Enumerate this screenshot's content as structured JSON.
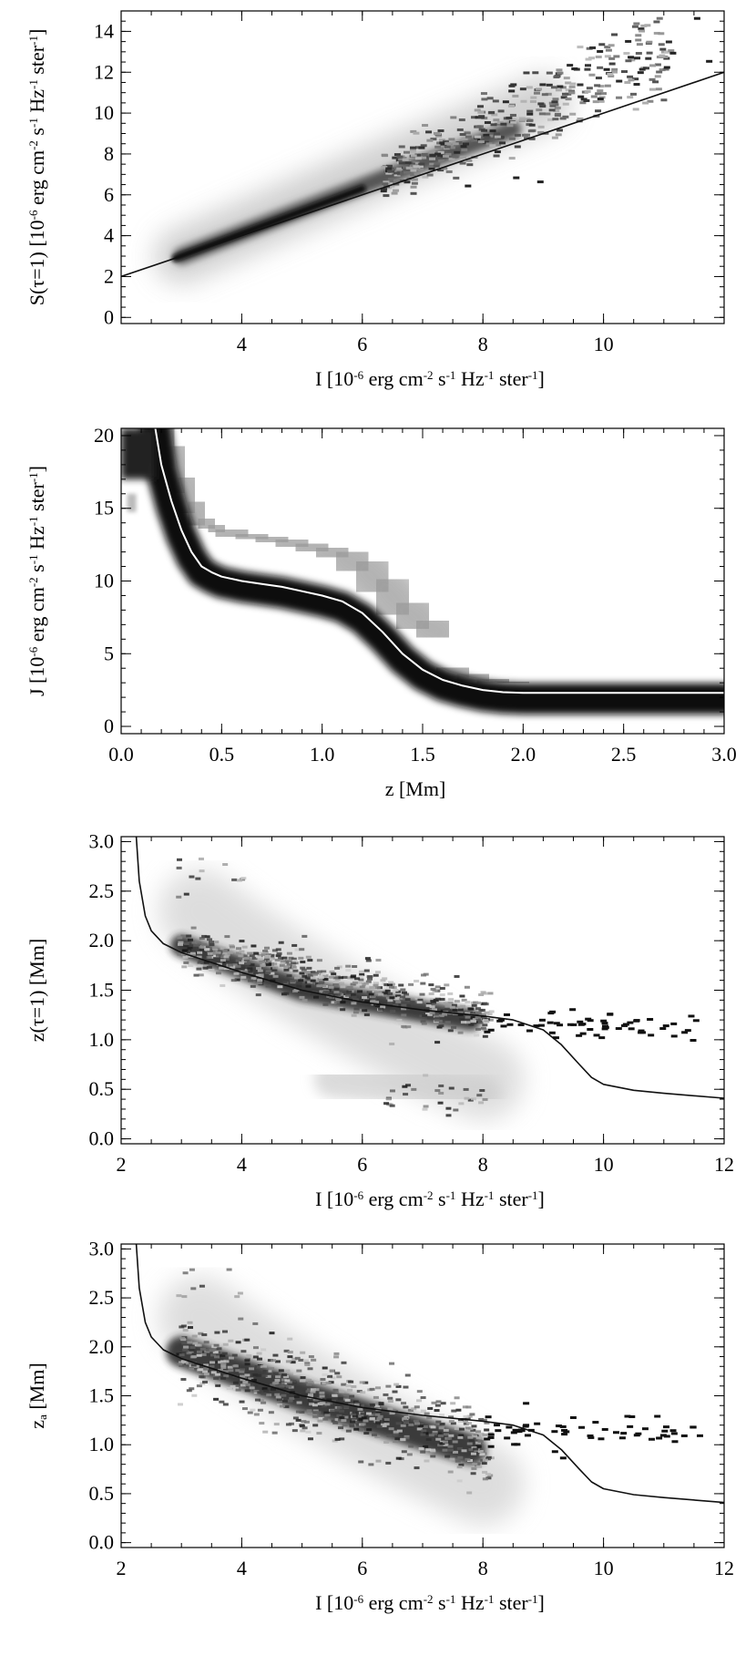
{
  "chart_data": [
    {
      "type": "heatmap",
      "xlabel": "I [10⁻⁶ erg cm⁻² s⁻¹ Hz⁻¹ ster⁻¹]",
      "xlabel_parts": {
        "pre": "I [10",
        "sup1": "-6",
        "mid1": " erg cm",
        "sup2": "-2",
        "mid2": " s",
        "sup3": "-1",
        "mid3": " Hz",
        "sup4": "-1",
        "mid4": " ster",
        "sup5": "-1",
        "post": "]"
      },
      "ylabel": "S(τ=1) [10⁻⁶ erg cm⁻² s⁻¹ Hz⁻¹ ster⁻¹]",
      "ylabel_parts": {
        "pre": "S(τ=1) [10",
        "sup1": "-6",
        "mid1": " erg cm",
        "sup2": "-2",
        "mid2": " s",
        "sup3": "-1",
        "mid3": " Hz",
        "sup4": "-1",
        "mid4": " ster",
        "sup5": "-1",
        "post": "]"
      },
      "xlim": [
        2,
        12
      ],
      "ylim": [
        -0.3,
        15
      ],
      "xticks": [
        "4",
        "6",
        "8",
        "10"
      ],
      "xtick_values": [
        4,
        6,
        8,
        10
      ],
      "yticks": [
        "0",
        "2",
        "4",
        "6",
        "8",
        "10",
        "12",
        "14"
      ],
      "ytick_values": [
        0,
        2,
        4,
        6,
        8,
        10,
        12,
        14
      ],
      "line": {
        "x": [
          2,
          12
        ],
        "y": [
          2,
          12
        ]
      },
      "density_ridge": {
        "x": [
          2.9,
          4,
          5,
          6,
          7,
          8,
          9
        ],
        "y": [
          3.0,
          4.1,
          5.2,
          6.5,
          8.0,
          9.5,
          10.2
        ]
      }
    },
    {
      "type": "heatmap",
      "xlabel": "z [Mm]",
      "ylabel": "J [10⁻⁶ erg cm⁻² s⁻¹ Hz⁻¹ ster⁻¹]",
      "ylabel_parts": {
        "pre": "J [10",
        "sup1": "-6",
        "mid1": " erg cm",
        "sup2": "-2",
        "mid2": " s",
        "sup3": "-1",
        "mid3": " Hz",
        "sup4": "-1",
        "mid4": " ster",
        "sup5": "-1",
        "post": "]"
      },
      "xlim": [
        0,
        3
      ],
      "ylim": [
        -0.5,
        20.5
      ],
      "xticks": [
        "0.0",
        "0.5",
        "1.0",
        "1.5",
        "2.0",
        "2.5",
        "3.0"
      ],
      "xtick_values": [
        0,
        0.5,
        1,
        1.5,
        2,
        2.5,
        3
      ],
      "yticks": [
        "0",
        "5",
        "10",
        "15",
        "20"
      ],
      "ytick_values": [
        0,
        5,
        10,
        15,
        20
      ],
      "line": {
        "x": [
          0.17,
          0.2,
          0.25,
          0.3,
          0.35,
          0.4,
          0.45,
          0.5,
          0.6,
          0.7,
          0.8,
          0.9,
          1.0,
          1.1,
          1.2,
          1.3,
          1.4,
          1.5,
          1.6,
          1.7,
          1.8,
          1.9,
          2.0,
          2.2,
          2.5,
          3.0
        ],
        "y": [
          20.5,
          18.0,
          15.5,
          13.5,
          12.0,
          11.0,
          10.6,
          10.3,
          10.0,
          9.8,
          9.6,
          9.3,
          9.0,
          8.6,
          7.8,
          6.5,
          5.0,
          3.9,
          3.2,
          2.8,
          2.5,
          2.35,
          2.3,
          2.3,
          2.3,
          2.3
        ]
      }
    },
    {
      "type": "heatmap",
      "xlabel": "I [10⁻⁶ erg cm⁻² s⁻¹ Hz⁻¹ ster⁻¹]",
      "xlabel_parts": {
        "pre": "I [10",
        "sup1": "-6",
        "mid1": " erg cm",
        "sup2": "-2",
        "mid2": " s",
        "sup3": "-1",
        "mid3": " Hz",
        "sup4": "-1",
        "mid4": " ster",
        "sup5": "-1",
        "post": "]"
      },
      "ylabel": "z(τ=1) [Mm]",
      "xlim": [
        2,
        12
      ],
      "ylim": [
        -0.05,
        3.05
      ],
      "xticks": [
        "2",
        "4",
        "6",
        "8",
        "10",
        "12"
      ],
      "xtick_values": [
        2,
        4,
        6,
        8,
        10,
        12
      ],
      "yticks": [
        "0.0",
        "0.5",
        "1.0",
        "1.5",
        "2.0",
        "2.5",
        "3.0"
      ],
      "ytick_values": [
        0,
        0.5,
        1,
        1.5,
        2,
        2.5,
        3
      ],
      "line": {
        "x": [
          2.25,
          2.3,
          2.4,
          2.5,
          2.7,
          3.0,
          3.5,
          4.0,
          5.0,
          6.0,
          7.0,
          8.0,
          8.5,
          9.0,
          9.3,
          9.6,
          9.8,
          10.0,
          10.5,
          11.0,
          12.0
        ],
        "y": [
          3.05,
          2.6,
          2.25,
          2.1,
          1.97,
          1.88,
          1.78,
          1.68,
          1.5,
          1.38,
          1.3,
          1.24,
          1.2,
          1.1,
          0.95,
          0.75,
          0.62,
          0.55,
          0.49,
          0.46,
          0.41
        ]
      }
    },
    {
      "type": "heatmap",
      "xlabel": "I [10⁻⁶ erg cm⁻² s⁻¹ Hz⁻¹ ster⁻¹]",
      "xlabel_parts": {
        "pre": "I [10",
        "sup1": "-6",
        "mid1": " erg cm",
        "sup2": "-2",
        "mid2": " s",
        "sup3": "-1",
        "mid3": " Hz",
        "sup4": "-1",
        "mid4": " ster",
        "sup5": "-1",
        "post": "]"
      },
      "ylabel": "z_a [Mm]",
      "ylabel_parts": {
        "pre": "z",
        "sub": "a",
        "post": " [Mm]"
      },
      "xlim": [
        2,
        12
      ],
      "ylim": [
        -0.05,
        3.05
      ],
      "xticks": [
        "2",
        "4",
        "6",
        "8",
        "10",
        "12"
      ],
      "xtick_values": [
        2,
        4,
        6,
        8,
        10,
        12
      ],
      "yticks": [
        "0.0",
        "0.5",
        "1.0",
        "1.5",
        "2.0",
        "2.5",
        "3.0"
      ],
      "ytick_values": [
        0,
        0.5,
        1,
        1.5,
        2,
        2.5,
        3
      ],
      "line": {
        "x": [
          2.25,
          2.3,
          2.4,
          2.5,
          2.7,
          3.0,
          3.5,
          4.0,
          5.0,
          6.0,
          7.0,
          8.0,
          8.5,
          9.0,
          9.3,
          9.6,
          9.8,
          10.0,
          10.5,
          11.0,
          12.0
        ],
        "y": [
          3.05,
          2.6,
          2.25,
          2.1,
          1.97,
          1.88,
          1.78,
          1.68,
          1.5,
          1.38,
          1.3,
          1.24,
          1.2,
          1.1,
          0.95,
          0.75,
          0.62,
          0.55,
          0.49,
          0.46,
          0.41
        ]
      }
    }
  ]
}
